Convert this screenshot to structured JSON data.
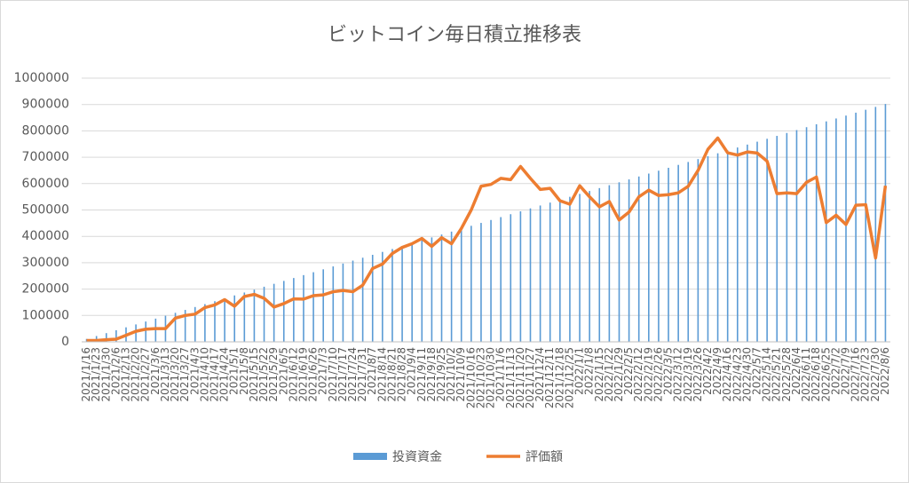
{
  "chart_data": {
    "type": "combo",
    "title": "ビットコイン毎日積立推移表",
    "categories": [
      "2021/1/16",
      "2021/1/23",
      "2021/1/30",
      "2021/2/6",
      "2021/2/13",
      "2021/2/20",
      "2021/2/27",
      "2021/3/6",
      "2021/3/13",
      "2021/3/20",
      "2021/3/27",
      "2021/4/3",
      "2021/4/10",
      "2021/4/17",
      "2021/4/24",
      "2021/5/1",
      "2021/5/8",
      "2021/5/15",
      "2021/5/22",
      "2021/5/29",
      "2021/6/5",
      "2021/6/12",
      "2021/6/19",
      "2021/6/26",
      "2021/7/3",
      "2021/7/10",
      "2021/7/17",
      "2021/7/24",
      "2021/7/31",
      "2021/8/7",
      "2021/8/14",
      "2021/8/21",
      "2021/8/28",
      "2021/9/4",
      "2021/9/11",
      "2021/9/18",
      "2021/9/25",
      "2021/10/2",
      "2021/10/9",
      "2021/10/16",
      "2021/10/23",
      "2021/10/30",
      "2021/11/6",
      "2021/11/13",
      "2021/11/20",
      "2021/11/27",
      "2021/12/4",
      "2021/12/11",
      "2021/12/18",
      "2021/12/25",
      "2022/1/1",
      "2022/1/8",
      "2022/1/15",
      "2022/1/22",
      "2022/1/29",
      "2022/2/5",
      "2022/2/12",
      "2022/2/19",
      "2022/2/26",
      "2022/3/5",
      "2022/3/12",
      "2022/3/19",
      "2022/3/26",
      "2022/4/2",
      "2022/4/9",
      "2022/4/16",
      "2022/4/23",
      "2022/4/30",
      "2022/5/7",
      "2022/5/14",
      "2022/5/21",
      "2022/5/28",
      "2022/6/4",
      "2022/6/11",
      "2022/6/18",
      "2022/6/25",
      "2022/7/2",
      "2022/7/9",
      "2022/7/16",
      "2022/7/23",
      "2022/7/30",
      "2022/8/6"
    ],
    "series": [
      {
        "name": "投資資金",
        "type": "bar",
        "color": "#5b9bd5",
        "values": [
          11000,
          22000,
          33000,
          44000,
          55000,
          66000,
          77000,
          88000,
          99000,
          110000,
          121000,
          132000,
          143000,
          154000,
          165000,
          176000,
          187000,
          198000,
          209000,
          220000,
          231000,
          242000,
          253000,
          264000,
          275000,
          286000,
          297000,
          308000,
          319000,
          330000,
          341000,
          352000,
          363000,
          374000,
          385000,
          396000,
          407000,
          418000,
          429000,
          440000,
          451000,
          462000,
          473000,
          484000,
          495000,
          506000,
          517000,
          528000,
          539000,
          550000,
          561000,
          572000,
          583000,
          594000,
          605000,
          616000,
          627000,
          638000,
          649000,
          660000,
          671000,
          682000,
          693000,
          704000,
          715000,
          726000,
          737000,
          748000,
          759000,
          770000,
          781000,
          792000,
          803000,
          814000,
          825000,
          836000,
          847000,
          858000,
          869000,
          880000,
          891000,
          902000
        ]
      },
      {
        "name": "評価額",
        "type": "line",
        "color": "#ed7d31",
        "values": [
          5000,
          5000,
          8000,
          10000,
          25000,
          40000,
          48000,
          50000,
          50000,
          90000,
          100000,
          105000,
          130000,
          140000,
          160000,
          135000,
          172000,
          180000,
          165000,
          132000,
          145000,
          163000,
          162000,
          175000,
          178000,
          190000,
          195000,
          190000,
          215000,
          278000,
          295000,
          335000,
          358000,
          372000,
          392000,
          362000,
          395000,
          372000,
          430000,
          500000,
          590000,
          597000,
          620000,
          615000,
          665000,
          620000,
          578000,
          582000,
          535000,
          522000,
          592000,
          550000,
          512000,
          532000,
          462000,
          492000,
          550000,
          575000,
          555000,
          558000,
          565000,
          590000,
          650000,
          730000,
          773000,
          717000,
          708000,
          720000,
          716000,
          685000,
          562000,
          565000,
          562000,
          605000,
          625000,
          452000,
          480000,
          445000,
          518000,
          520000,
          318000,
          592000
        ]
      }
    ],
    "ylim": [
      0,
      1000000
    ],
    "yticks": [
      0,
      100000,
      200000,
      300000,
      400000,
      500000,
      600000,
      700000,
      800000,
      900000,
      1000000
    ],
    "grid": true
  }
}
